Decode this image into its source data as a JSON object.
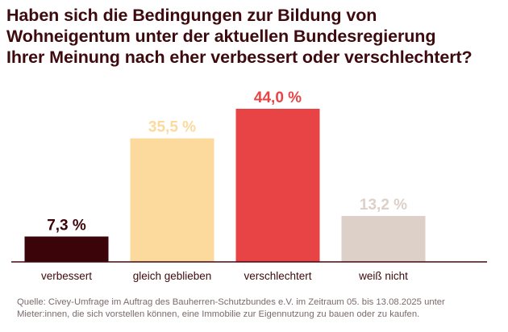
{
  "title_lines": [
    "Haben sich die Bedingungen zur Bildung von",
    "Wohneigentum unter der aktuellen Bundesregierung",
    "Ihrer Meinung nach eher verbessert oder verschlechtert?"
  ],
  "source_lines": [
    "Quelle: Civey-Umfrage im Auftrag des Bauherren-Schutzbundes e.V. im Zeitraum 05. bis 13.08.2025 unter",
    "Mieter:innen, die sich vorstellen können, eine Immobilie zur Eigennutzung zu bauen oder zu kaufen."
  ],
  "colors": {
    "title": "#3d0a0e",
    "category_label": "#3d0a0e",
    "source": "#7a6a6a",
    "axis": "#3d0a0e"
  },
  "chart_data": {
    "type": "bar",
    "categories": [
      "verbessert",
      "gleich geblieben",
      "verschlechtert",
      "weiß nicht"
    ],
    "values": [
      7.3,
      35.5,
      44.0,
      13.2
    ],
    "value_labels": [
      "7,3 %",
      "35,5 %",
      "44,0 %",
      "13,2 %"
    ],
    "bar_colors": [
      "#3a0408",
      "#fcd99c",
      "#e84446",
      "#dcd0c8"
    ],
    "value_label_colors": [
      "#3a0408",
      "#fcd99c",
      "#e84446",
      "#dcd0c8"
    ],
    "title": "Haben sich die Bedingungen zur Bildung von Wohneigentum unter der aktuellen Bundesregierung Ihrer Meinung nach eher verbessert oder verschlechtert?",
    "xlabel": "",
    "ylabel": "",
    "ylim": [
      0,
      44.0
    ],
    "grid": false
  }
}
